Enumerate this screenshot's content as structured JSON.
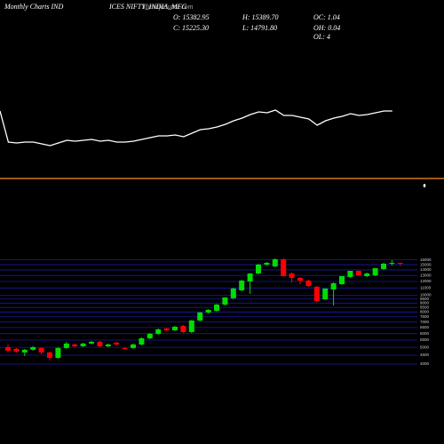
{
  "header": {
    "title": "Monthly Charts IND",
    "symbol": "ICES NIFTY_INDIA_MFG",
    "source": "MunafaSutra.com",
    "open": "O: 15382.95",
    "high": "H: 15389.70",
    "close": "C: 15225.30",
    "low": "L: 14791.80",
    "oc": "OC: 1.04",
    "oh": "OH: 0.04",
    "ol": "OL: 4"
  },
  "chart_data": [
    {
      "type": "candlestick",
      "log_scale": true,
      "grid": true,
      "up_color": "#00dd00",
      "down_color": "#ff0000",
      "grid_color": "#1a1aa8",
      "ylim": [
        4000,
        16500
      ],
      "yticks": [
        4000,
        4500,
        5000,
        5500,
        6000,
        6500,
        7000,
        7500,
        8000,
        8500,
        9000,
        9500,
        10000,
        11000,
        12000,
        13000,
        14000,
        15000,
        16000
      ],
      "open": [
        5011,
        4895,
        4670,
        4838,
        4953,
        4670,
        4345,
        4953,
        5192,
        5071,
        5254,
        5378,
        5071,
        5316,
        4953,
        4953,
        5192,
        5637,
        5982,
        6420,
        6270,
        6651,
        6124,
        7140,
        7938,
        8128,
        8827,
        9600,
        10664,
        12000,
        13345,
        15015,
        14664,
        16115,
        13345,
        12580,
        12142,
        11179,
        9476,
        10791,
        11581,
        12730,
        13824,
        12880,
        13034,
        14154,
        15193,
        15382.95
      ],
      "high": [
        5192,
        4953,
        4895,
        5071,
        5011,
        4725,
        5011,
        5378,
        5254,
        5316,
        5448,
        5448,
        5254,
        5378,
        5011,
        5254,
        5706,
        6053,
        6420,
        6500,
        6651,
        6730,
        7200,
        8030,
        8300,
        8900,
        9600,
        11050,
        12300,
        13400,
        15193,
        15554,
        16300,
        16300,
        13502,
        12730,
        12300,
        11312,
        10918,
        11857,
        12880,
        13824,
        13900,
        13502,
        14322,
        15373,
        15926,
        15389.7
      ],
      "low": [
        4670,
        4670,
        4455,
        4781,
        4560,
        4199,
        4300,
        4895,
        5011,
        5011,
        5192,
        5011,
        5011,
        5131,
        4838,
        4895,
        5131,
        5560,
        5900,
        6200,
        6200,
        6050,
        6050,
        7050,
        7846,
        8030,
        8700,
        9500,
        10539,
        10170,
        13200,
        14839,
        14500,
        12880,
        11857,
        11581,
        11179,
        9100,
        9400,
        8725,
        11446,
        12600,
        13034,
        12730,
        12880,
        14000,
        14839,
        14791.8
      ],
      "close": [
        4781,
        4725,
        4838,
        5011,
        4670,
        4345,
        4953,
        5254,
        5071,
        5254,
        5378,
        5071,
        5192,
        5192,
        4895,
        5192,
        5637,
        5982,
        6344,
        6270,
        6573,
        6124,
        7140,
        7938,
        8225,
        8827,
        9702,
        10918,
        12142,
        13345,
        15015,
        15373,
        16115,
        12880,
        12580,
        12142,
        11312,
        9255,
        10918,
        11720,
        12880,
        13824,
        13034,
        13345,
        14322,
        15193,
        15373,
        15225.3
      ]
    },
    {
      "type": "line",
      "color": "#ffffff",
      "ylim": [
        0,
        100
      ],
      "values": [
        75,
        40,
        39,
        40,
        40,
        38,
        36,
        39,
        42,
        41,
        42,
        43,
        41,
        42,
        40,
        40,
        41,
        43,
        45,
        47,
        47,
        48,
        46,
        50,
        54,
        55,
        57,
        60,
        64,
        67,
        71,
        74,
        73,
        76,
        70,
        70,
        68,
        66,
        59,
        64,
        67,
        69,
        72,
        70,
        71,
        73,
        75,
        75
      ]
    }
  ]
}
